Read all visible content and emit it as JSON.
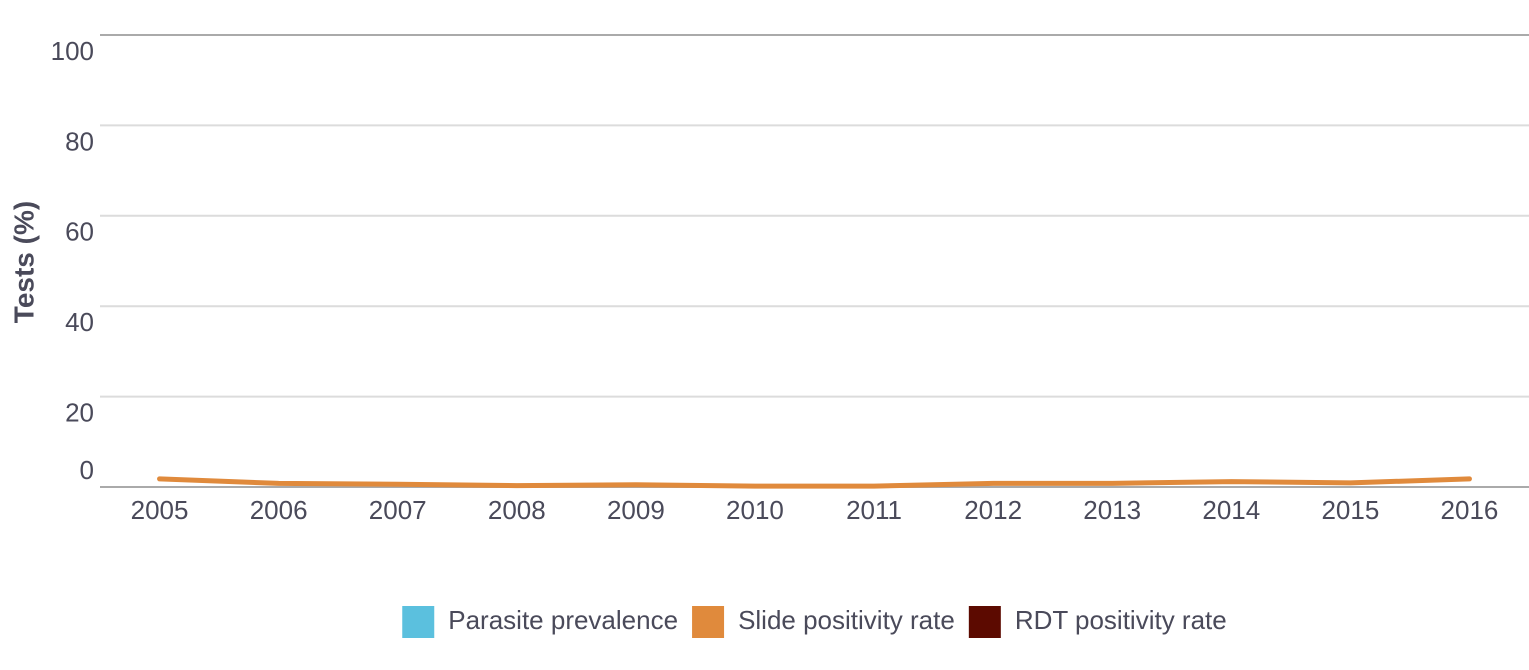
{
  "chart_data": {
    "type": "line",
    "y_label": "Tests (%)",
    "categories": [
      "2005",
      "2006",
      "2007",
      "2008",
      "2009",
      "2010",
      "2011",
      "2012",
      "2013",
      "2014",
      "2015",
      "2016"
    ],
    "series": [
      {
        "name": "Parasite prevalence",
        "color": "#5bc0de",
        "values": [
          null,
          null,
          null,
          null,
          null,
          null,
          null,
          null,
          null,
          null,
          null,
          null
        ]
      },
      {
        "name": "Slide positivity rate",
        "color": "#e08a3c",
        "values": [
          1.8,
          0.8,
          0.6,
          0.3,
          0.5,
          0.2,
          0.2,
          0.8,
          0.8,
          1.2,
          0.9,
          1.8
        ]
      },
      {
        "name": "RDT positivity rate",
        "color": "#5c0a00",
        "values": [
          null,
          null,
          null,
          null,
          null,
          null,
          null,
          null,
          null,
          null,
          null,
          null
        ]
      }
    ],
    "ylim": [
      0,
      100
    ],
    "yticks": [
      0,
      20,
      40,
      60,
      80,
      100
    ],
    "grid": true,
    "legend": "bottom"
  }
}
